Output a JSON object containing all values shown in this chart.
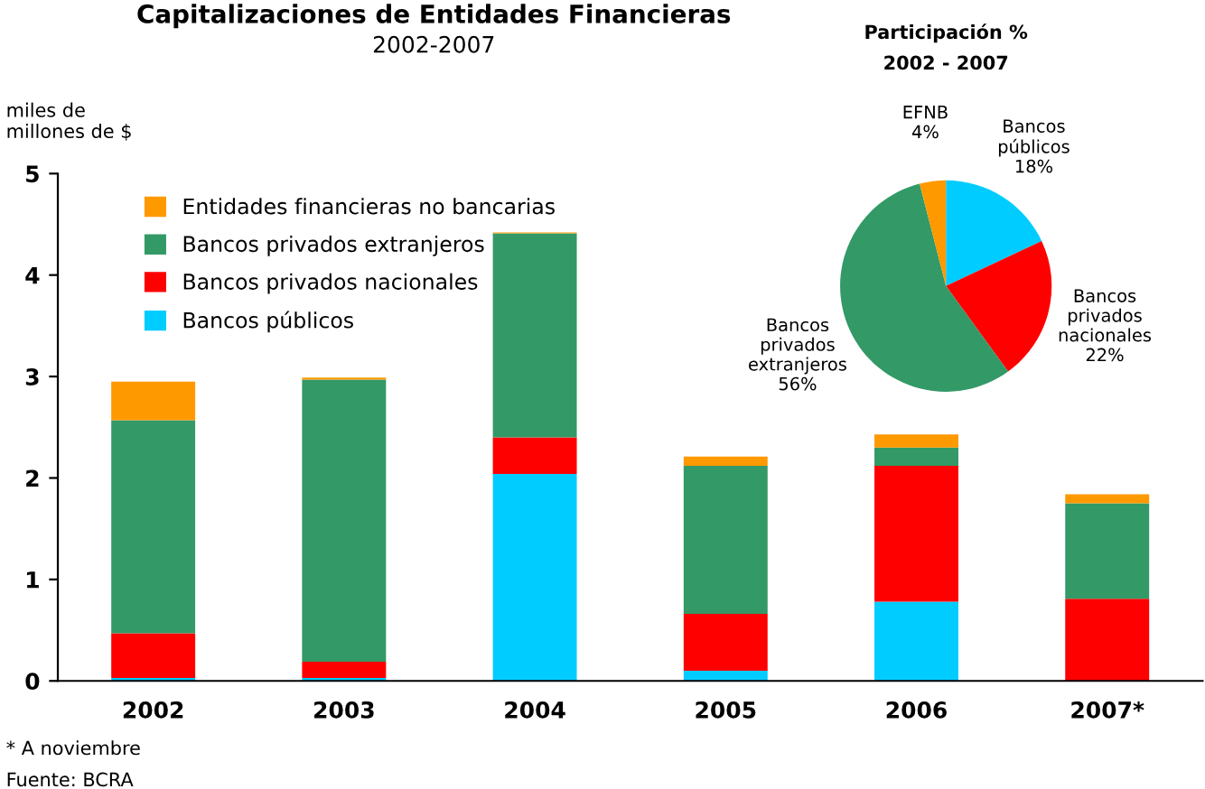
{
  "chart_data": [
    {
      "type": "bar",
      "title": "Capitalizaciones de Entidades Financieras",
      "subtitle": "2002-2007",
      "ylabel": "miles de\nmillones de $",
      "categories": [
        "2002",
        "2003",
        "2004",
        "2005",
        "2006",
        "2007*"
      ],
      "stacked": true,
      "series": [
        {
          "name": "Bancos públicos",
          "color": "#00ccff",
          "values": [
            0.03,
            0.03,
            2.04,
            0.1,
            0.78,
            0
          ]
        },
        {
          "name": "Bancos privados nacionales",
          "color": "#ff0000",
          "values": [
            0.44,
            0.16,
            0.36,
            0.56,
            1.34,
            0.81
          ]
        },
        {
          "name": "Bancos privados extranjeros",
          "color": "#339966",
          "values": [
            2.1,
            2.78,
            2.01,
            1.46,
            0.18,
            0.94
          ]
        },
        {
          "name": "Entidades financieras no bancarias",
          "color": "#ff9900",
          "values": [
            0.38,
            0.02,
            0.01,
            0.09,
            0.13,
            0.09
          ]
        }
      ],
      "ylim": [
        0,
        5
      ],
      "yticks": [
        0,
        1,
        2,
        3,
        4,
        5
      ],
      "grid": false,
      "legend": "top left",
      "annotations": [
        "* A noviembre",
        "Fuente: BCRA"
      ]
    },
    {
      "type": "pie",
      "title": "Participación %",
      "subtitle": "2002 - 2007",
      "categories": [
        "Bancos públicos",
        "Bancos privados nacionales",
        "Bancos privados extranjeros",
        "EFNB"
      ],
      "values": [
        18,
        22,
        56,
        4
      ],
      "value_labels": [
        "18%",
        "22%",
        "56%",
        "4%"
      ],
      "colors": [
        "#00ccff",
        "#ff0000",
        "#339966",
        "#ff9900"
      ]
    }
  ]
}
